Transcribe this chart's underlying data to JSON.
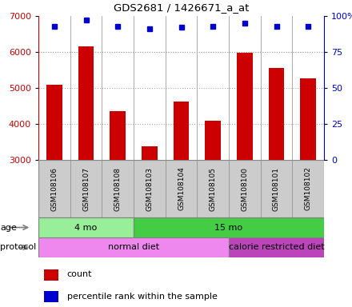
{
  "title": "GDS2681 / 1426671_a_at",
  "samples": [
    "GSM108106",
    "GSM108107",
    "GSM108108",
    "GSM108103",
    "GSM108104",
    "GSM108105",
    "GSM108100",
    "GSM108101",
    "GSM108102"
  ],
  "counts": [
    5100,
    6150,
    4350,
    3380,
    4620,
    4080,
    5980,
    5560,
    5260
  ],
  "percentile_ranks": [
    93,
    97,
    93,
    91,
    92,
    93,
    95,
    93,
    93
  ],
  "ylim_left": [
    3000,
    7000
  ],
  "ylim_right": [
    0,
    100
  ],
  "yticks_left": [
    3000,
    4000,
    5000,
    6000,
    7000
  ],
  "yticks_right": [
    0,
    25,
    50,
    75,
    100
  ],
  "bar_color": "#cc0000",
  "dot_color": "#0000cc",
  "tick_color_left": "#cc0000",
  "tick_color_right": "#0000cc",
  "sample_box_color": "#cccccc",
  "sample_box_edge": "#888888",
  "age_groups": [
    {
      "label": "4 mo",
      "start": 0,
      "end": 3,
      "color": "#99ee99"
    },
    {
      "label": "15 mo",
      "start": 3,
      "end": 9,
      "color": "#44cc44"
    }
  ],
  "protocol_groups": [
    {
      "label": "normal diet",
      "start": 0,
      "end": 6,
      "color": "#ee88ee"
    },
    {
      "label": "calorie restricted diet",
      "start": 6,
      "end": 9,
      "color": "#bb44bb"
    }
  ],
  "grid_linestyle": ":",
  "grid_linewidth": 0.8,
  "grid_color": "#aaaaaa",
  "background_color": "#ffffff",
  "figsize": [
    4.4,
    3.84
  ],
  "dpi": 100
}
